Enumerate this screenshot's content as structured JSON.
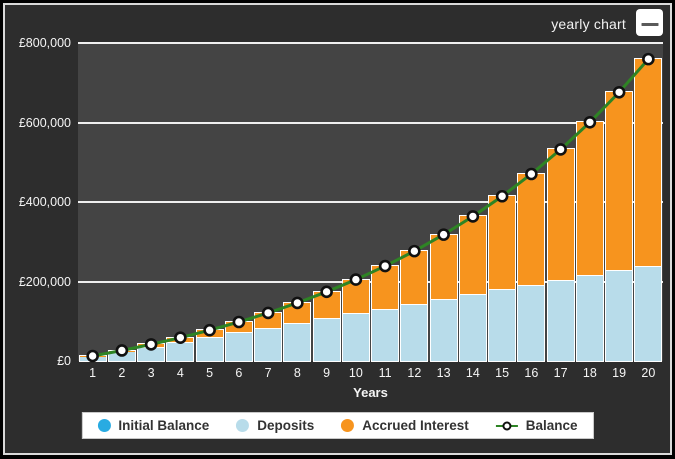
{
  "header": {
    "title": "yearly chart",
    "menu_button": "chart options menu"
  },
  "colors": {
    "page_background": "#000000",
    "panel_background": "#2d2d2d",
    "plot_background": "#444444",
    "gridline": "#f0f0f0",
    "axis_text": "#f5f5f5",
    "initial_balance": "#29abe2",
    "deposits": "#b8dcea",
    "accrued_interest": "#f7941e",
    "balance_line": "#2e8424",
    "marker_fill": "#ffffff",
    "marker_stroke": "#111111",
    "legend_background": "#ffffff",
    "legend_text": "#333333"
  },
  "chart_data": {
    "type": "bar",
    "subtype": "stacked bars with balance line overlay",
    "title": "yearly chart",
    "xlabel": "Years",
    "ylabel": "",
    "ylim": [
      0,
      800000
    ],
    "grid": true,
    "legend_position": "bottom",
    "categories": [
      1,
      2,
      3,
      4,
      5,
      6,
      7,
      8,
      9,
      10,
      11,
      12,
      13,
      14,
      15,
      16,
      17,
      18,
      19,
      20
    ],
    "y_ticks": [
      {
        "value": 0,
        "label": "£0"
      },
      {
        "value": 200000,
        "label": "£200,000"
      },
      {
        "value": 400000,
        "label": "£400,000"
      },
      {
        "value": 600000,
        "label": "£600,000"
      },
      {
        "value": 800000,
        "label": "£800,000"
      }
    ],
    "series": [
      {
        "name": "Initial Balance",
        "color": "#29abe2",
        "values": [
          0,
          0,
          0,
          0,
          0,
          0,
          0,
          0,
          0,
          0,
          0,
          0,
          0,
          0,
          0,
          0,
          0,
          0,
          0,
          0
        ]
      },
      {
        "name": "Deposits",
        "color": "#b8dcea",
        "values": [
          12000,
          24000,
          36000,
          48000,
          60000,
          72000,
          84000,
          96000,
          108000,
          120000,
          132000,
          144000,
          156000,
          168000,
          180000,
          192000,
          204000,
          216000,
          228000,
          240000
        ]
      },
      {
        "name": "Accrued Interest",
        "color": "#f7941e",
        "values": [
          566,
          2447,
          5782,
          10723,
          17437,
          26112,
          36951,
          50182,
          66055,
          84845,
          106859,
          132434,
          161945,
          195800,
          234470,
          278445,
          328281,
          384593,
          448059,
          519428
        ]
      }
    ],
    "line_series": {
      "name": "Balance",
      "color": "#2e8424",
      "marker": "open-circle",
      "values": [
        12566,
        26447,
        41782,
        58723,
        77437,
        98112,
        120951,
        146182,
        174055,
        204845,
        238859,
        276434,
        317945,
        363800,
        414470,
        470445,
        532281,
        600593,
        676059,
        759428
      ]
    },
    "legend_items": [
      {
        "label": "Initial Balance",
        "swatch": "dot",
        "color": "#29abe2"
      },
      {
        "label": "Deposits",
        "swatch": "dot",
        "color": "#b8dcea"
      },
      {
        "label": "Accrued Interest",
        "swatch": "dot",
        "color": "#f7941e"
      },
      {
        "label": "Balance",
        "swatch": "line-marker",
        "color": "#2e8424"
      }
    ]
  }
}
